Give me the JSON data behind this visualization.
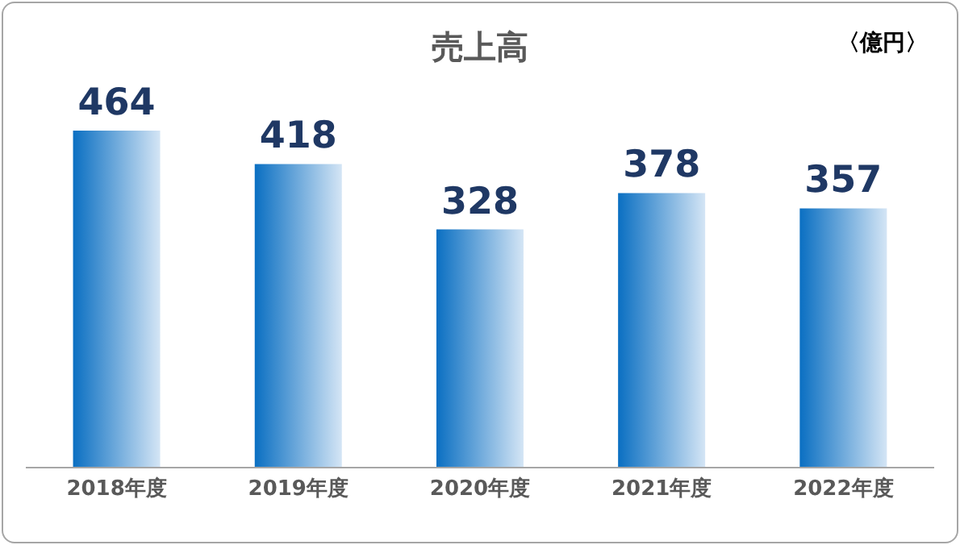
{
  "chart_data": {
    "type": "bar",
    "title": "売上高",
    "annotations": [
      "〈億円〉"
    ],
    "categories": [
      "2018年度",
      "2019年度",
      "2020年度",
      "2021年度",
      "2022年度"
    ],
    "values": [
      464,
      418,
      328,
      378,
      357
    ],
    "color": "#0a6fc2",
    "data_labels": true
  }
}
